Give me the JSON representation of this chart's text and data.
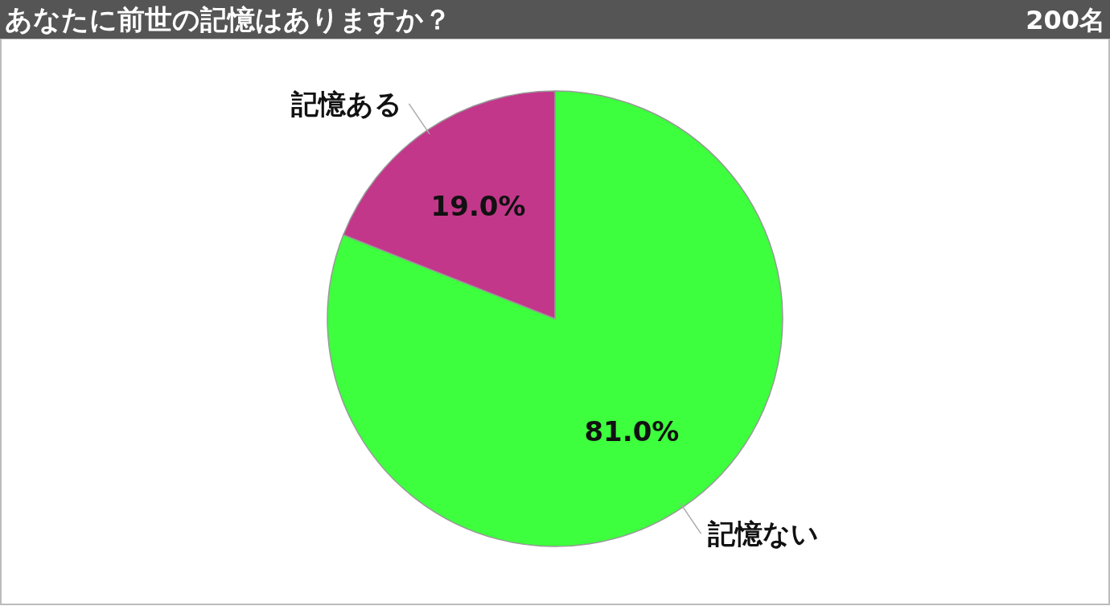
{
  "chart_data": {
    "type": "pie",
    "title": "あなたに前世の記憶はありますか？",
    "subtitle": "200名",
    "categories": [
      "記憶ない",
      "記憶ある"
    ],
    "values": [
      81.0,
      19.0
    ],
    "colors": [
      "#3dff3d",
      "#c2378a"
    ],
    "value_labels": [
      "81.0%",
      "19.0%"
    ]
  }
}
